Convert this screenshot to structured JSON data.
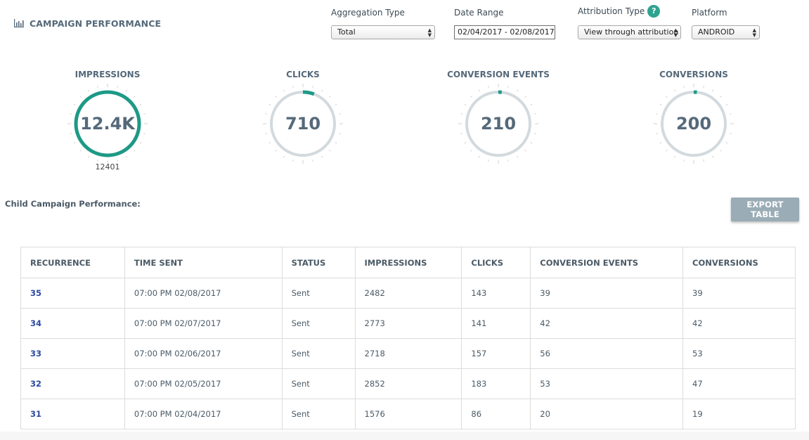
{
  "header": {
    "title": "CAMPAIGN PERFORMANCE",
    "icon": "bar-chart-icon"
  },
  "filters": {
    "aggregation": {
      "label": "Aggregation Type",
      "value": "Total"
    },
    "date_range": {
      "label": "Date Range",
      "value": "02/04/2017 - 02/08/2017"
    },
    "attribution": {
      "label": "Attribution Type",
      "help": "?",
      "value": "View through attribution"
    },
    "platform": {
      "label": "Platform",
      "value": "ANDROID"
    }
  },
  "metrics": [
    {
      "label": "IMPRESSIONS",
      "display": "12.4K",
      "sub": "12401",
      "fill": 1.0
    },
    {
      "label": "CLICKS",
      "display": "710",
      "sub": "",
      "fill": 0.057
    },
    {
      "label": "CONVERSION EVENTS",
      "display": "210",
      "sub": "",
      "fill": 0.017
    },
    {
      "label": "CONVERSIONS",
      "display": "200",
      "sub": "",
      "fill": 0.016
    }
  ],
  "colors": {
    "accent": "#1d9a86",
    "track": "#d3dade",
    "tick": "#c4c4c4"
  },
  "child_section": {
    "label": "Child Campaign Performance:",
    "export_label": "EXPORT TABLE"
  },
  "table": {
    "columns": [
      "RECURRENCE",
      "TIME SENT",
      "STATUS",
      "IMPRESSIONS",
      "CLICKS",
      "CONVERSION EVENTS",
      "CONVERSIONS"
    ],
    "rows": [
      [
        "35",
        "07:00 PM 02/08/2017",
        "Sent",
        "2482",
        "143",
        "39",
        "39"
      ],
      [
        "34",
        "07:00 PM 02/07/2017",
        "Sent",
        "2773",
        "141",
        "42",
        "42"
      ],
      [
        "33",
        "07:00 PM 02/06/2017",
        "Sent",
        "2718",
        "157",
        "56",
        "53"
      ],
      [
        "32",
        "07:00 PM 02/05/2017",
        "Sent",
        "2852",
        "183",
        "53",
        "47"
      ],
      [
        "31",
        "07:00 PM 02/04/2017",
        "Sent",
        "1576",
        "86",
        "20",
        "19"
      ]
    ]
  }
}
